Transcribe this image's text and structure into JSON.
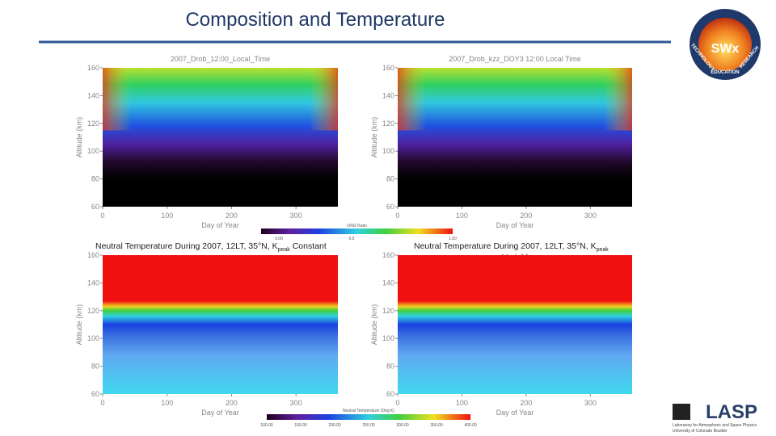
{
  "header": {
    "title": "Composition and Temperature"
  },
  "panels": [
    {
      "title": "2007_Drob_12:00_Local_Time",
      "x_label": "Day of Year",
      "y_label": "Altitude (km)",
      "x_ticks": [
        0,
        100,
        200,
        300
      ],
      "y_ticks": [
        60,
        80,
        100,
        120,
        140,
        160
      ]
    },
    {
      "title": "2007_Drob_kzz_DOY3 12:00 Local Time",
      "x_label": "Day of Year",
      "y_label": "Altitude (km)",
      "x_ticks": [
        0,
        100,
        200,
        300
      ],
      "y_ticks": [
        60,
        80,
        100,
        120,
        140,
        160
      ]
    },
    {
      "x_label": "Day of Year",
      "y_label": "Altitude (km)",
      "x_ticks": [
        0,
        100,
        200,
        300
      ],
      "y_ticks": [
        60,
        80,
        100,
        120,
        140,
        160
      ]
    },
    {
      "x_label": "Day of Year",
      "y_label": "Altitude (km)",
      "x_ticks": [
        0,
        100,
        200,
        300
      ],
      "y_ticks": [
        60,
        80,
        100,
        120,
        140,
        160
      ]
    }
  ],
  "colorbars": [
    {
      "label": "O/N2 Ratio",
      "ticks": [
        "0.00",
        "0.5",
        "1.00"
      ]
    },
    {
      "label": "Neutral Temperature (Deg K)",
      "ticks": [
        "100.00",
        "150.00",
        "200.00",
        "250.00",
        "300.00",
        "350.00",
        "400.00"
      ]
    }
  ],
  "captions": [
    {
      "text": "Neutral Temperature During 2007, 12LT, 35°N, K",
      "sub": "peak",
      "tail": " Constant"
    },
    {
      "text": "Neutral Temperature During 2007, 12LT, 35°N, K",
      "sub": "peak",
      "tail": "Variable"
    }
  ],
  "logos": {
    "swx": {
      "main": "SWx",
      "left": "TECHNOLOGY",
      "right": "RESEARCH",
      "bottom": "EDUCATION"
    },
    "lasp": {
      "name": "LASP",
      "line1": "Laboratory for Atmospheric and Space Physics",
      "line2": "University of Colorado Boulder"
    }
  }
}
